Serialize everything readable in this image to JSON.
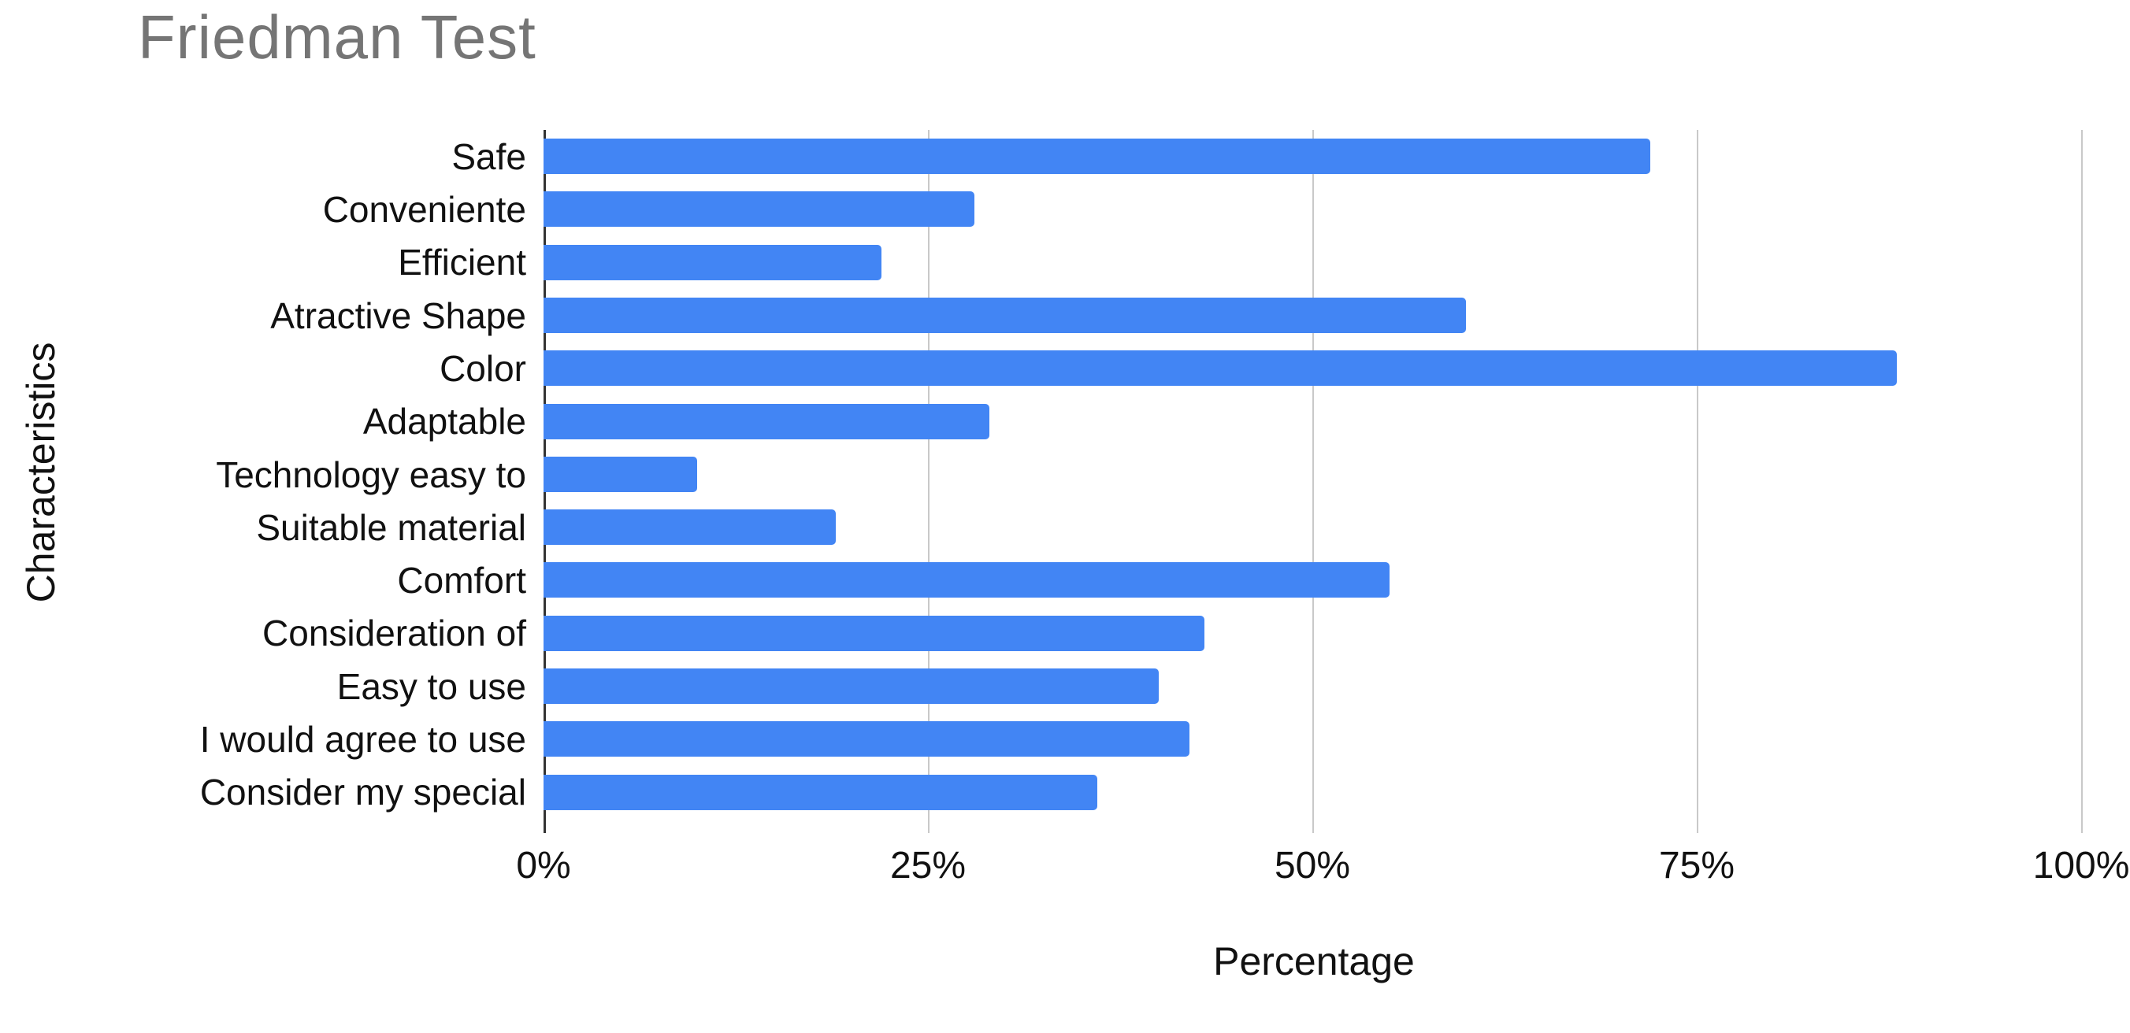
{
  "chart_data": {
    "type": "bar",
    "orientation": "horizontal",
    "title": "Friedman Test",
    "xlabel": "Percentage",
    "ylabel": "Characteristics",
    "categories": [
      "Safe",
      "Conveniente",
      "Efficient",
      "Atractive Shape",
      "Color",
      "Adaptable",
      "Technology easy to",
      "Suitable material",
      "Comfort",
      "Consideration of",
      "Easy to use",
      "I would agree to use",
      "Consider my special"
    ],
    "values": [
      72,
      28,
      22,
      60,
      88,
      29,
      10,
      19,
      55,
      43,
      40,
      42,
      36
    ],
    "x_ticks": [
      "0%",
      "25%",
      "50%",
      "75%",
      "100%"
    ],
    "x_tick_values": [
      0,
      25,
      50,
      75,
      100
    ],
    "xlim": [
      0,
      100
    ],
    "grid": true,
    "legend": false,
    "bar_color": "#4285F4",
    "gridline_color": "#c9c9c9",
    "axis_line_color": "#333333",
    "title_color": "#757575",
    "text_color": "#111111"
  }
}
